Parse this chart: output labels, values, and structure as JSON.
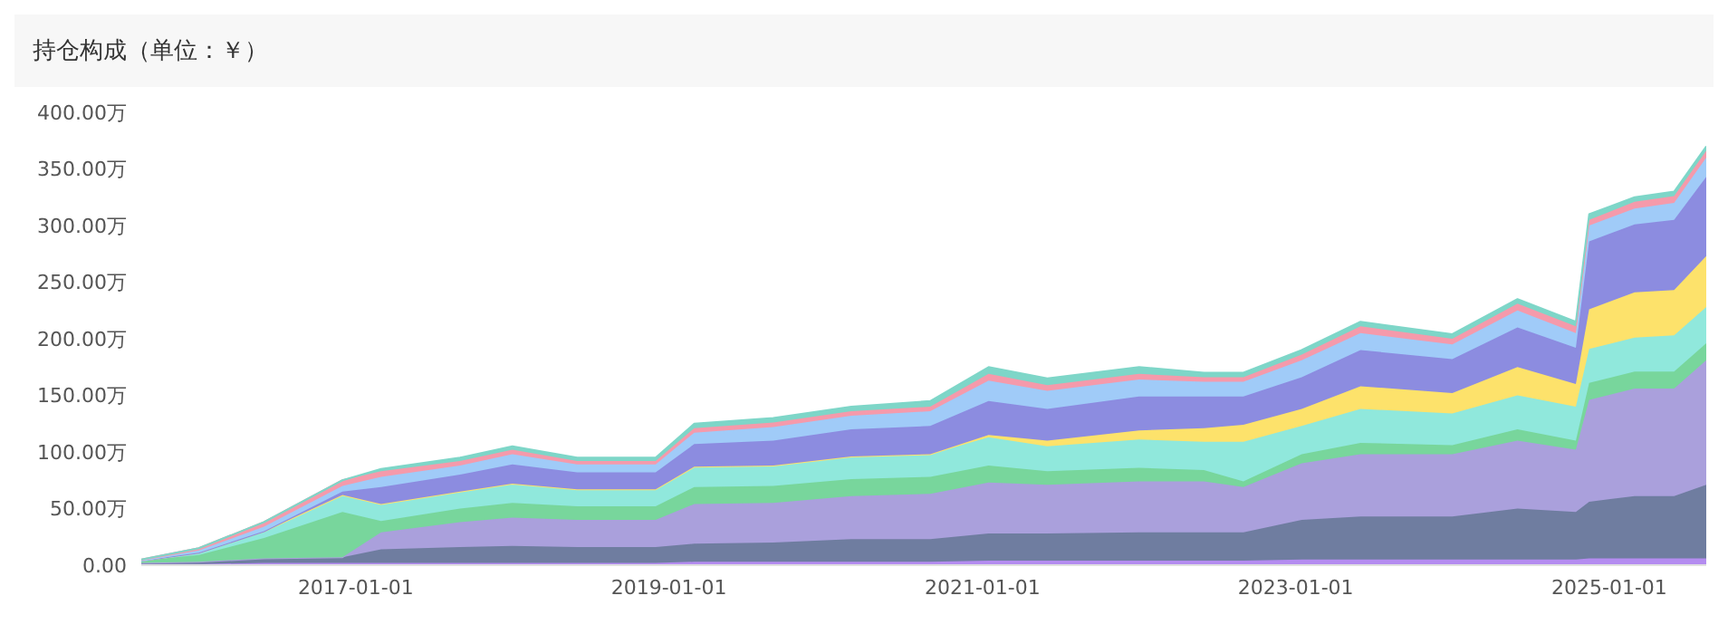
{
  "chart_data": {
    "type": "area",
    "stacked": true,
    "title": "持仓构成（单位：￥）",
    "x": [
      "2015-08-20",
      "2016-01-01",
      "2016-06-01",
      "2016-12-01",
      "2017-03-01",
      "2017-09-01",
      "2018-01-01",
      "2018-06-01",
      "2018-12-01",
      "2019-03-01",
      "2019-09-01",
      "2020-03-01",
      "2020-09-01",
      "2021-01-15",
      "2021-06-01",
      "2022-01-01",
      "2022-06-01",
      "2022-09-01",
      "2023-01-15",
      "2023-06-01",
      "2024-01-01",
      "2024-06-01",
      "2024-10-15",
      "2024-11-15",
      "2025-03-01",
      "2025-06-01",
      "2025-08-15"
    ],
    "series": [
      {
        "color": "#b48cf0",
        "values": [
          1,
          1,
          2,
          2,
          2,
          2,
          2,
          2,
          2,
          3,
          3,
          3,
          3,
          4,
          4,
          4,
          4,
          4,
          5,
          5,
          5,
          5,
          5,
          6,
          6,
          6,
          6
        ]
      },
      {
        "color": "#6f7da0",
        "values": [
          1,
          2,
          4,
          5,
          12,
          14,
          15,
          14,
          14,
          16,
          17,
          20,
          20,
          24,
          24,
          25,
          25,
          25,
          35,
          38,
          38,
          45,
          42,
          50,
          55,
          55,
          65
        ]
      },
      {
        "color": "#aaa0dc",
        "values": [
          0,
          0,
          0,
          0,
          15,
          22,
          25,
          24,
          24,
          35,
          35,
          38,
          40,
          45,
          43,
          45,
          45,
          40,
          50,
          55,
          55,
          60,
          55,
          90,
          95,
          95,
          110
        ]
      },
      {
        "color": "#78d69c",
        "values": [
          2,
          6,
          18,
          40,
          10,
          12,
          13,
          12,
          12,
          15,
          15,
          15,
          15,
          15,
          12,
          12,
          10,
          5,
          8,
          10,
          8,
          10,
          8,
          15,
          15,
          15,
          15
        ]
      },
      {
        "color": "#90e8dc",
        "values": [
          0,
          2,
          6,
          15,
          15,
          15,
          17,
          15,
          15,
          18,
          18,
          20,
          20,
          25,
          22,
          25,
          25,
          35,
          25,
          30,
          28,
          30,
          30,
          30,
          30,
          32,
          32
        ]
      },
      {
        "color": "#fde26b",
        "values": [
          0,
          0,
          0,
          0,
          0,
          0,
          0,
          0,
          0,
          0,
          0,
          0,
          0,
          2,
          5,
          8,
          12,
          15,
          15,
          20,
          18,
          25,
          20,
          35,
          40,
          40,
          45
        ]
      },
      {
        "color": "#8c8ce0",
        "values": [
          0,
          0,
          0,
          3,
          15,
          15,
          17,
          15,
          15,
          20,
          22,
          24,
          25,
          30,
          28,
          30,
          28,
          25,
          28,
          32,
          30,
          35,
          32,
          60,
          60,
          62,
          70
        ]
      },
      {
        "color": "#a0cbf8",
        "values": [
          0,
          2,
          4,
          5,
          9,
          8,
          9,
          7,
          7,
          10,
          12,
          12,
          13,
          18,
          16,
          15,
          13,
          13,
          15,
          15,
          13,
          15,
          13,
          14,
          14,
          15,
          17
        ]
      },
      {
        "color": "#f59aab",
        "values": [
          1,
          2,
          4,
          5,
          5,
          4,
          4,
          3,
          3,
          4,
          4,
          4,
          4,
          6,
          5,
          5,
          4,
          4,
          5,
          6,
          5,
          6,
          6,
          5,
          6,
          6,
          6
        ]
      },
      {
        "color": "#7ed6c8",
        "values": [
          0,
          0,
          0,
          0,
          2,
          3,
          3,
          3,
          3,
          4,
          4,
          4,
          5,
          6,
          6,
          6,
          4,
          4,
          4,
          4,
          4,
          4,
          4,
          5,
          4,
          4,
          4
        ]
      }
    ],
    "xlim": [
      "2015-08-20",
      "2025-08-15"
    ],
    "xticks": [
      "2017-01-01",
      "2019-01-01",
      "2021-01-01",
      "2023-01-01",
      "2025-01-01"
    ],
    "ylim": [
      0,
      400
    ],
    "yticks": [
      {
        "value": 0,
        "label": "0.00"
      },
      {
        "value": 50,
        "label": "50.00万"
      },
      {
        "value": 100,
        "label": "100.00万"
      },
      {
        "value": 150,
        "label": "150.00万"
      },
      {
        "value": 200,
        "label": "200.00万"
      },
      {
        "value": 250,
        "label": "250.00万"
      },
      {
        "value": 300,
        "label": "300.00万"
      },
      {
        "value": 350,
        "label": "350.00万"
      },
      {
        "value": 400,
        "label": "400.00万"
      }
    ],
    "grid": false,
    "legend": false
  }
}
